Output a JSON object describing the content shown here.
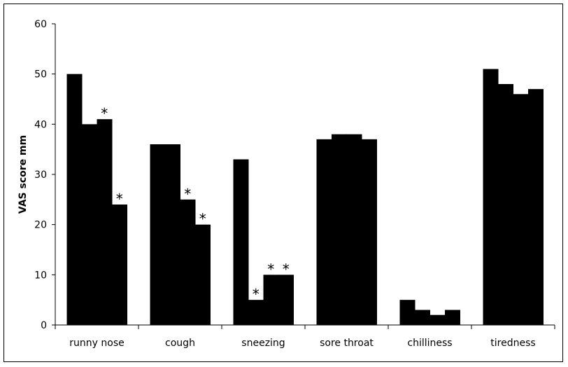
{
  "chart_data": {
    "type": "bar",
    "title": "",
    "xlabel": "",
    "ylabel": "VAS score mm",
    "ylim": [
      0,
      60
    ],
    "yticks": [
      0,
      10,
      20,
      30,
      40,
      50,
      60
    ],
    "grid": false,
    "legend": "none",
    "bar_color": "#000000",
    "categories": [
      "runny nose",
      "cough",
      "sneezing",
      "sore throat",
      "chilliness",
      "tiredness"
    ],
    "groups": [
      {
        "category": "runny nose",
        "values": [
          50,
          40,
          41,
          24
        ],
        "marks": [
          "",
          "",
          "*",
          "*"
        ]
      },
      {
        "category": "cough",
        "values": [
          36,
          36,
          25,
          20
        ],
        "marks": [
          "",
          "",
          "*",
          "*"
        ]
      },
      {
        "category": "sneezing",
        "values": [
          33,
          5,
          10,
          10
        ],
        "marks": [
          "",
          "*",
          "*",
          "*"
        ]
      },
      {
        "category": "sore throat",
        "values": [
          37,
          38,
          38,
          37
        ],
        "marks": [
          "",
          "",
          "",
          ""
        ]
      },
      {
        "category": "chilliness",
        "values": [
          5,
          3,
          2,
          3
        ],
        "marks": [
          "",
          "",
          "",
          ""
        ]
      },
      {
        "category": "tiredness",
        "values": [
          51,
          48,
          46,
          47
        ],
        "marks": [
          "",
          "",
          "",
          ""
        ]
      }
    ]
  }
}
